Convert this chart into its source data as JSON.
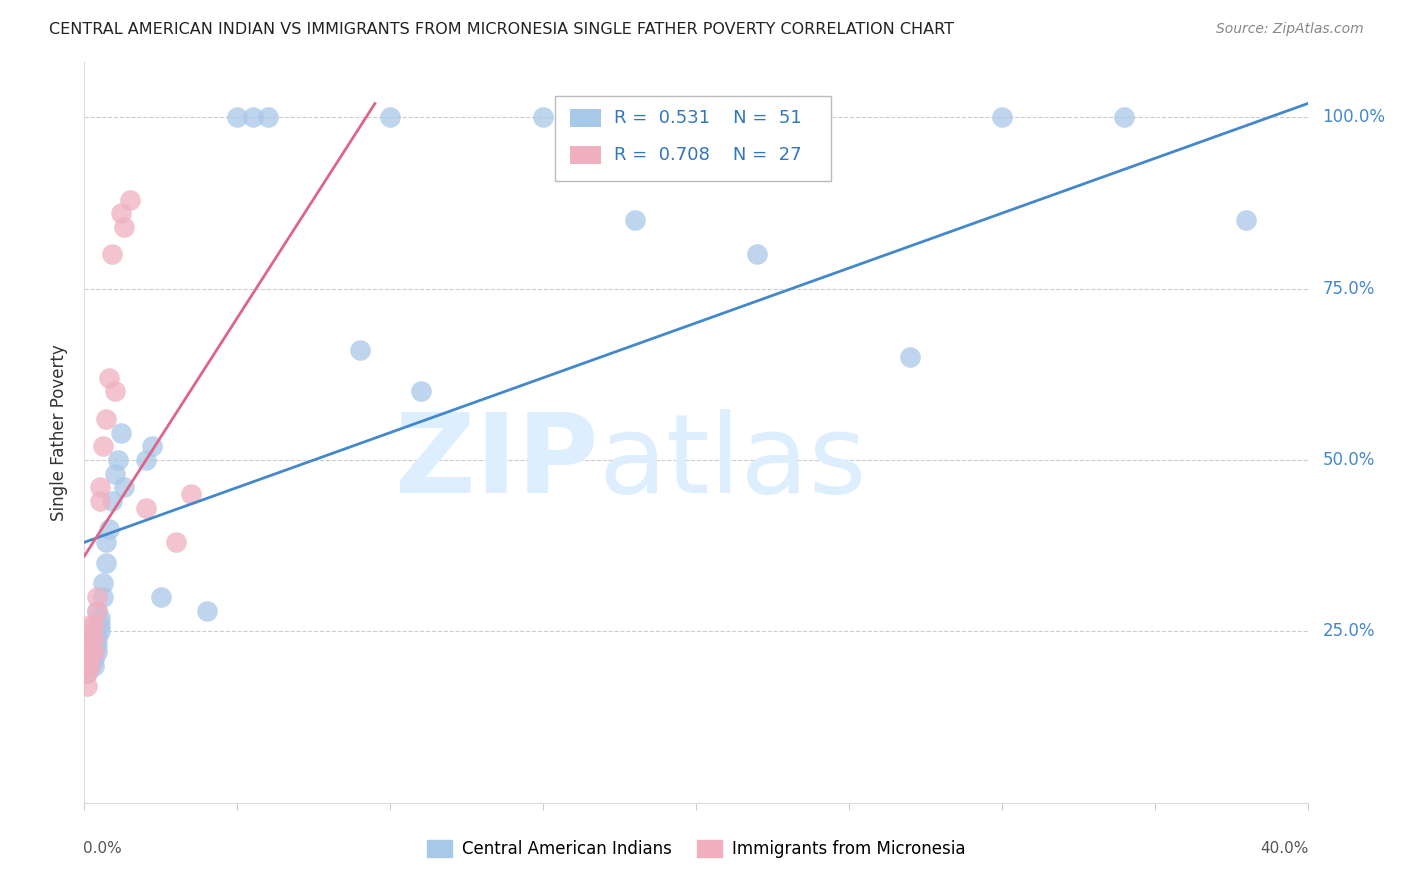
{
  "title": "CENTRAL AMERICAN INDIAN VS IMMIGRANTS FROM MICRONESIA SINGLE FATHER POVERTY CORRELATION CHART",
  "source": "Source: ZipAtlas.com",
  "ylabel": "Single Father Poverty",
  "legend_blue_label": "Central American Indians",
  "legend_pink_label": "Immigrants from Micronesia",
  "blue_color": "#a8c8e8",
  "pink_color": "#f0b0c0",
  "blue_line_color": "#4488cc",
  "pink_line_color": "#dd6688",
  "background_color": "#ffffff",
  "right_ytick_labels": [
    "100.0%",
    "75.0%",
    "50.0%",
    "25.0%"
  ],
  "right_ytick_values": [
    1.0,
    0.75,
    0.5,
    0.25
  ],
  "blue_x": [
    0.001,
    0.001,
    0.001,
    0.001,
    0.001,
    0.002,
    0.002,
    0.002,
    0.002,
    0.002,
    0.002,
    0.003,
    0.003,
    0.003,
    0.003,
    0.003,
    0.003,
    0.004,
    0.004,
    0.004,
    0.004,
    0.005,
    0.005,
    0.005,
    0.006,
    0.006,
    0.007,
    0.007,
    0.008,
    0.009,
    0.01,
    0.011,
    0.012,
    0.013,
    0.02,
    0.022,
    0.025,
    0.04,
    0.05,
    0.055,
    0.06,
    0.09,
    0.1,
    0.11,
    0.15,
    0.18,
    0.22,
    0.27,
    0.3,
    0.34,
    0.38
  ],
  "blue_y": [
    0.2,
    0.21,
    0.22,
    0.19,
    0.23,
    0.2,
    0.21,
    0.22,
    0.23,
    0.2,
    0.21,
    0.2,
    0.21,
    0.22,
    0.23,
    0.24,
    0.25,
    0.22,
    0.23,
    0.24,
    0.28,
    0.25,
    0.26,
    0.27,
    0.3,
    0.32,
    0.35,
    0.38,
    0.4,
    0.44,
    0.48,
    0.5,
    0.54,
    0.46,
    0.5,
    0.52,
    0.3,
    0.28,
    1.0,
    1.0,
    1.0,
    0.66,
    1.0,
    0.6,
    1.0,
    0.85,
    0.8,
    0.65,
    1.0,
    1.0,
    0.85
  ],
  "pink_x": [
    0.001,
    0.001,
    0.001,
    0.001,
    0.001,
    0.002,
    0.002,
    0.002,
    0.002,
    0.003,
    0.003,
    0.003,
    0.004,
    0.004,
    0.005,
    0.005,
    0.006,
    0.007,
    0.008,
    0.009,
    0.01,
    0.012,
    0.013,
    0.015,
    0.02,
    0.03,
    0.035
  ],
  "pink_y": [
    0.19,
    0.2,
    0.21,
    0.22,
    0.17,
    0.2,
    0.22,
    0.24,
    0.26,
    0.22,
    0.24,
    0.26,
    0.28,
    0.3,
    0.44,
    0.46,
    0.52,
    0.56,
    0.62,
    0.8,
    0.6,
    0.86,
    0.84,
    0.88,
    0.43,
    0.38,
    0.45
  ],
  "blue_line_x0": 0.0,
  "blue_line_x1": 0.4,
  "blue_line_y0": 0.38,
  "blue_line_y1": 1.02,
  "pink_line_x0": 0.0,
  "pink_line_x1": 0.095,
  "pink_line_y0": 0.36,
  "pink_line_y1": 1.02,
  "xmin": 0.0,
  "xmax": 0.4,
  "ymin": 0.0,
  "ymax": 1.08
}
